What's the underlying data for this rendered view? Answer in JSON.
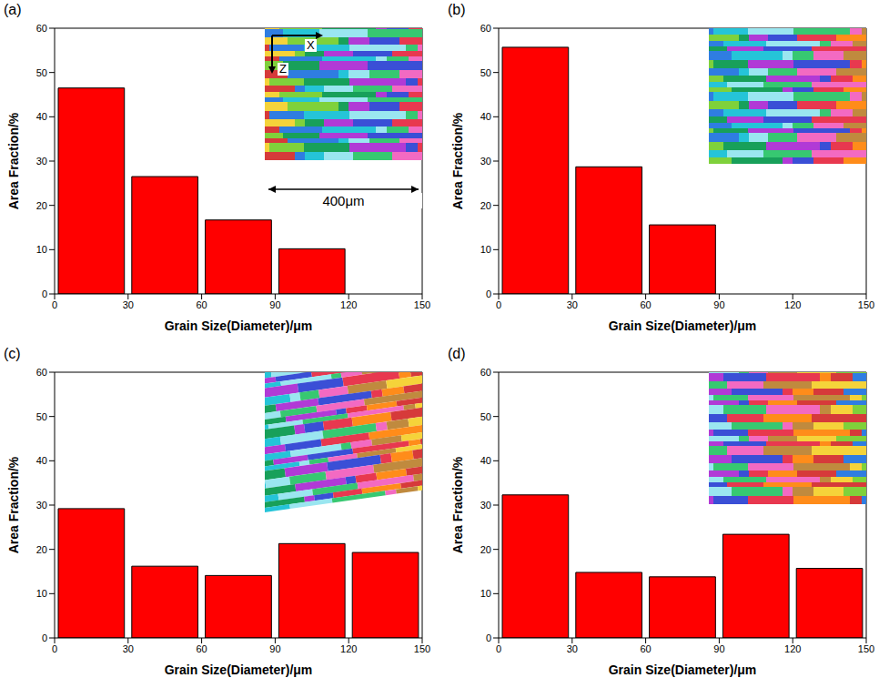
{
  "chart_data": [
    {
      "type": "histogram",
      "title": "(a)",
      "bins": [
        0,
        30,
        60,
        90,
        120
      ],
      "counts": [
        46.5,
        26.5,
        16.7,
        10.2
      ],
      "color": "#ff0000",
      "xlim": [
        0,
        150
      ],
      "xticks": [
        0,
        30,
        60,
        90,
        120,
        150
      ],
      "ylim": [
        0,
        60
      ],
      "yticks": [
        0,
        10,
        20,
        30,
        40,
        50,
        60
      ],
      "xlabel": "Grain Size(Diameter)/μm",
      "ylabel": "Area Fraction/%",
      "annotations": [
        "X",
        "Z",
        "400μm"
      ]
    },
    {
      "type": "histogram",
      "title": "(b)",
      "bins": [
        0,
        30,
        60,
        90
      ],
      "counts": [
        55.7,
        28.7,
        15.6
      ],
      "color": "#ff0000",
      "xlim": [
        0,
        150
      ],
      "xticks": [
        0,
        30,
        60,
        90,
        120,
        150
      ],
      "ylim": [
        0,
        60
      ],
      "yticks": [
        0,
        10,
        20,
        30,
        40,
        50,
        60
      ],
      "xlabel": "Grain Size(Diameter)/μm",
      "ylabel": "Area Fraction/%"
    },
    {
      "type": "histogram",
      "title": "(c)",
      "bins": [
        0,
        30,
        60,
        90,
        120,
        150
      ],
      "counts": [
        29.2,
        16.2,
        14.1,
        21.3,
        19.3
      ],
      "color": "#ff0000",
      "xlim": [
        0,
        150
      ],
      "xticks": [
        0,
        30,
        60,
        90,
        120,
        150
      ],
      "ylim": [
        0,
        60
      ],
      "yticks": [
        0,
        10,
        20,
        30,
        40,
        50,
        60
      ],
      "xlabel": "Grain Size(Diameter)/μm",
      "ylabel": "Area Fraction/%"
    },
    {
      "type": "histogram",
      "title": "(d)",
      "bins": [
        0,
        30,
        60,
        90,
        120,
        150
      ],
      "counts": [
        32.3,
        14.8,
        13.8,
        23.4,
        15.7
      ],
      "color": "#ff0000",
      "xlim": [
        0,
        150
      ],
      "xticks": [
        0,
        30,
        60,
        90,
        120,
        150
      ],
      "ylim": [
        0,
        60
      ],
      "yticks": [
        0,
        10,
        20,
        30,
        40,
        50,
        60
      ],
      "xlabel": "Grain Size(Diameter)/μm",
      "ylabel": "Area Fraction/%"
    }
  ]
}
